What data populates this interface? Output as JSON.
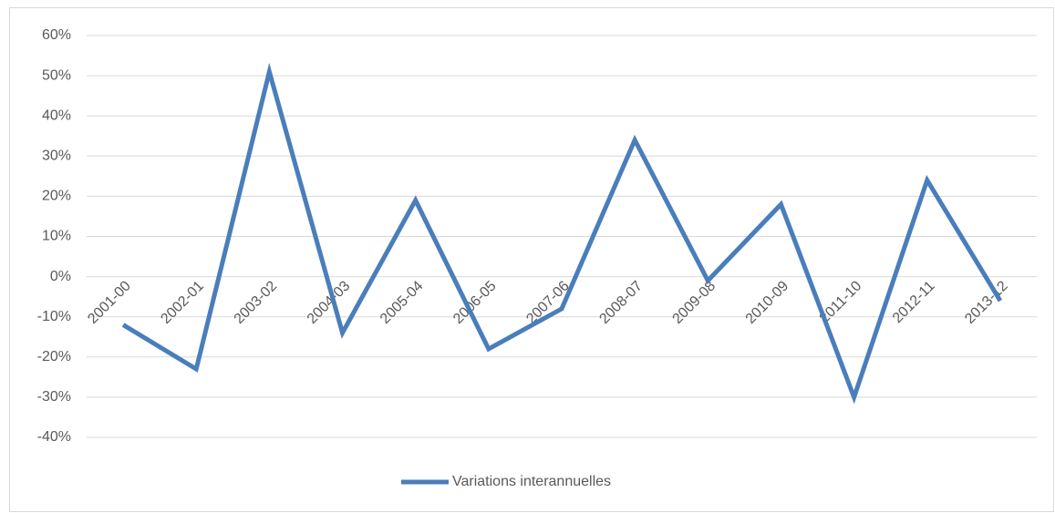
{
  "chart_data": {
    "type": "line",
    "categories": [
      "2001-00",
      "2002-01",
      "2003-02",
      "2004-03",
      "2005-04",
      "2006-05",
      "2007-06",
      "2008-07",
      "2009-08",
      "2010-09",
      "2011-10",
      "2012-11",
      "2013-12"
    ],
    "series": [
      {
        "name": "Variations interannuelles",
        "color": "#4a7ebb",
        "values": [
          -12,
          -23,
          51,
          -14,
          19,
          -18,
          -8,
          34,
          -1,
          18,
          -30,
          24,
          -6
        ]
      }
    ],
    "ylim": [
      -40,
      60
    ],
    "yticks": [
      {
        "value": -40,
        "label": "-40%"
      },
      {
        "value": -30,
        "label": "-30%"
      },
      {
        "value": -20,
        "label": "-20%"
      },
      {
        "value": -10,
        "label": "-10%"
      },
      {
        "value": 0,
        "label": "0%"
      },
      {
        "value": 10,
        "label": "10%"
      },
      {
        "value": 20,
        "label": "20%"
      },
      {
        "value": 30,
        "label": "30%"
      },
      {
        "value": 40,
        "label": "40%"
      },
      {
        "value": 50,
        "label": "50%"
      },
      {
        "value": 60,
        "label": "60%"
      }
    ],
    "grid": true,
    "legend": "bottom"
  }
}
